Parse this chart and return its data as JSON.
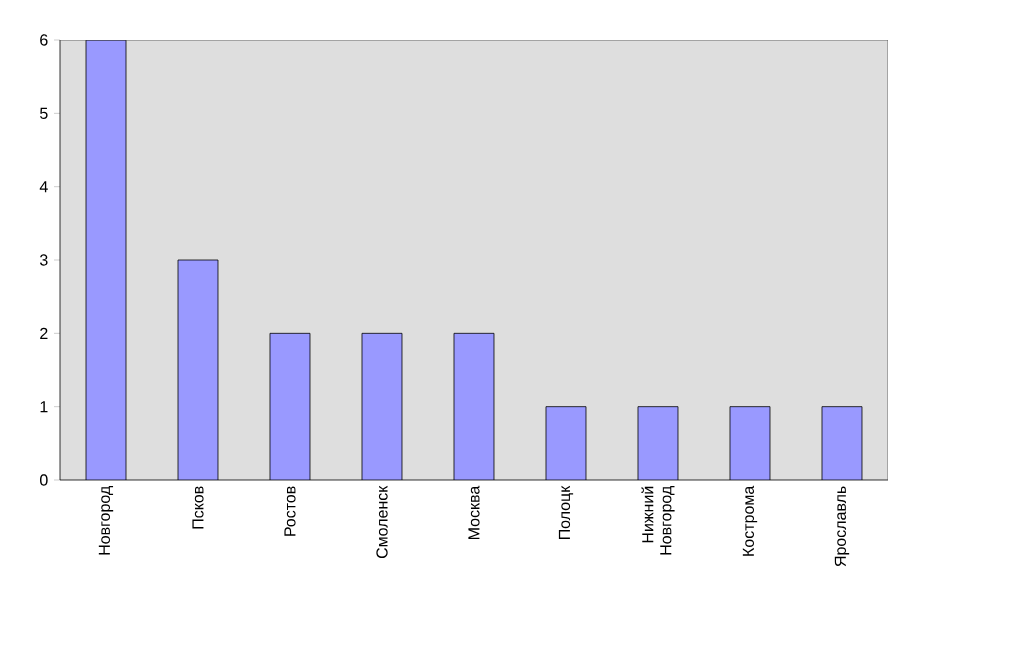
{
  "chart_data": {
    "type": "bar",
    "categories": [
      "Новгород",
      "Псков",
      "Ростов",
      "Смоленск",
      "Москва",
      "Полоцк",
      "Нижний Новгород",
      "Кострома",
      "Ярославль"
    ],
    "values": [
      6,
      3,
      2,
      2,
      2,
      1,
      1,
      1,
      1
    ],
    "color": "#9999ff",
    "ylim": [
      0,
      6
    ],
    "yticks": [
      0,
      1,
      2,
      3,
      4,
      5,
      6
    ],
    "grid": false
  }
}
